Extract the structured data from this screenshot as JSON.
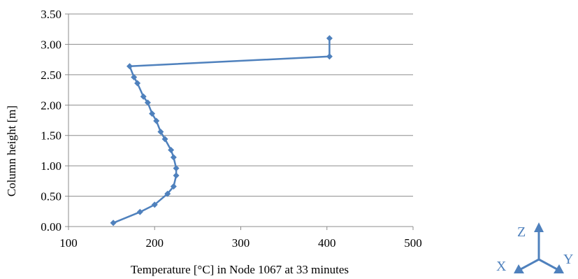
{
  "chart_data": {
    "type": "line",
    "title": "",
    "xlabel": "Temperature [°C] in Node 1067 at 33 minutes",
    "ylabel": "Column height [m]",
    "xlim": [
      100,
      500
    ],
    "ylim": [
      0,
      3.5
    ],
    "x_ticks": [
      "100",
      "200",
      "300",
      "400",
      "500"
    ],
    "y_ticks": [
      "0.00",
      "0.50",
      "1.00",
      "1.50",
      "2.00",
      "2.50",
      "3.00",
      "3.50"
    ],
    "grid": "horizontal",
    "legend": "none",
    "series": [
      {
        "color": "#4f81bd",
        "marker": "diamond",
        "points": [
          {
            "x": 152,
            "y": 0.06
          },
          {
            "x": 183,
            "y": 0.24
          },
          {
            "x": 200,
            "y": 0.36
          },
          {
            "x": 215,
            "y": 0.54
          },
          {
            "x": 222,
            "y": 0.66
          },
          {
            "x": 225,
            "y": 0.84
          },
          {
            "x": 225,
            "y": 0.96
          },
          {
            "x": 222,
            "y": 1.14
          },
          {
            "x": 219,
            "y": 1.26
          },
          {
            "x": 212,
            "y": 1.44
          },
          {
            "x": 207,
            "y": 1.56
          },
          {
            "x": 202,
            "y": 1.74
          },
          {
            "x": 197,
            "y": 1.86
          },
          {
            "x": 192,
            "y": 2.04
          },
          {
            "x": 187,
            "y": 2.14
          },
          {
            "x": 180,
            "y": 2.36
          },
          {
            "x": 176,
            "y": 2.46
          },
          {
            "x": 171,
            "y": 2.64
          },
          {
            "x": 403,
            "y": 2.8
          },
          {
            "x": 403,
            "y": 3.1
          }
        ]
      }
    ]
  },
  "triad": {
    "z_label": "Z",
    "x_label": "X",
    "y_label": "Y",
    "color": "#4f81bd"
  }
}
